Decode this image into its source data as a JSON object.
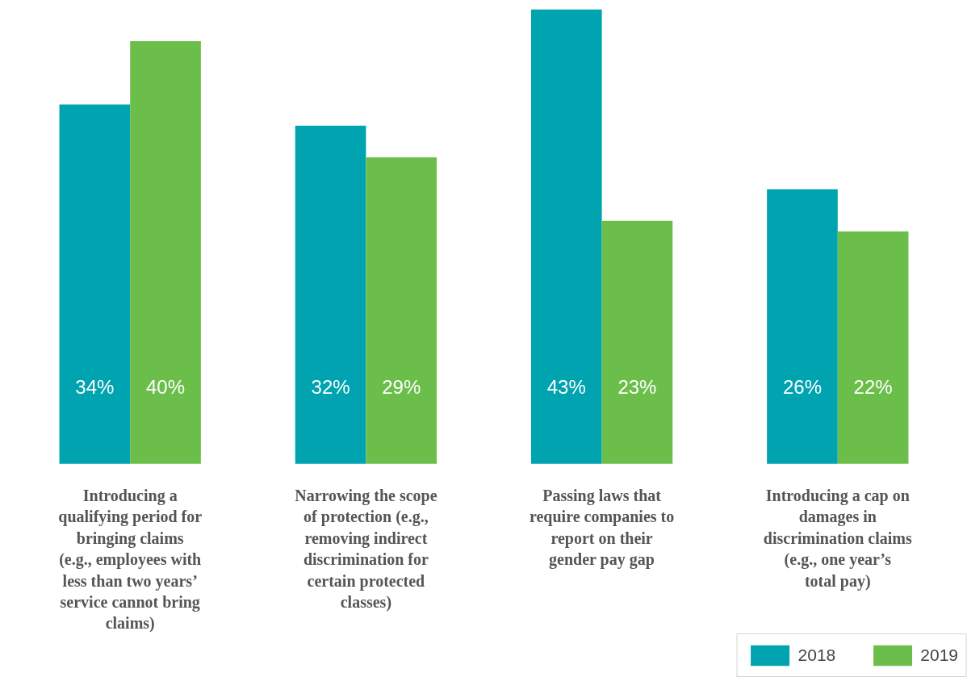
{
  "chart_data": {
    "type": "bar",
    "categories": [
      "Introducing a qualifying period for bringing claims (e.g., employees with less than two years’ service cannot bring claims)",
      "Narrowing the scope of protection (e.g., removing indirect discrimination for certain protected classes)",
      "Passing laws that require companies to report on their gender pay gap",
      "Introducing a cap on damages in discrimination claims (e.g., one year’s total pay)"
    ],
    "series": [
      {
        "name": "2018",
        "color": "#00a3b0",
        "values": [
          34,
          32,
          43,
          26
        ],
        "value_labels": [
          "34%",
          "32%",
          "43%",
          "26%"
        ]
      },
      {
        "name": "2019",
        "color": "#6cbe4a",
        "values": [
          40,
          29,
          23,
          22
        ],
        "value_labels": [
          "40%",
          "29%",
          "23%",
          "22%"
        ]
      }
    ],
    "legend": "bottom right"
  }
}
